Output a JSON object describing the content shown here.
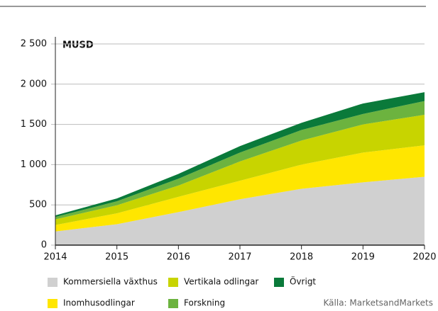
{
  "chart_data": {
    "type": "stacked-area",
    "y_label": "MUSD",
    "source": "Källa: MarketsandMarkets",
    "x": [
      2014,
      2015,
      2016,
      2017,
      2018,
      2019,
      2020
    ],
    "xlim": [
      2014,
      2020
    ],
    "xticks": [
      2014,
      2015,
      2016,
      2017,
      2018,
      2019,
      2020
    ],
    "ylim": [
      0,
      2500
    ],
    "yticks": [
      0,
      500,
      {
        "value": 1000,
        "label": "1 000"
      },
      {
        "value": 1500,
        "label": "1 500"
      },
      {
        "value": 2000,
        "label": "2 000"
      },
      {
        "value": 2500,
        "label": "2 500"
      }
    ],
    "grid": true,
    "series": [
      {
        "name": "Kommersiella växthus",
        "color": "#d0d0d0",
        "values": [
          170,
          260,
          410,
          570,
          700,
          780,
          850
        ]
      },
      {
        "name": "Inomhusodlingar",
        "color": "#ffe600",
        "values": [
          80,
          135,
          190,
          230,
          300,
          370,
          390
        ]
      },
      {
        "name": "Vertikala odlingar",
        "color": "#c8d400",
        "values": [
          70,
          100,
          140,
          240,
          300,
          350,
          380
        ]
      },
      {
        "name": "Forskning",
        "color": "#6cb33f",
        "values": [
          30,
          50,
          85,
          110,
          130,
          130,
          170
        ]
      },
      {
        "name": "Övrigt",
        "color": "#0a7a3a",
        "values": [
          20,
          35,
          60,
          80,
          90,
          130,
          110
        ]
      }
    ]
  }
}
